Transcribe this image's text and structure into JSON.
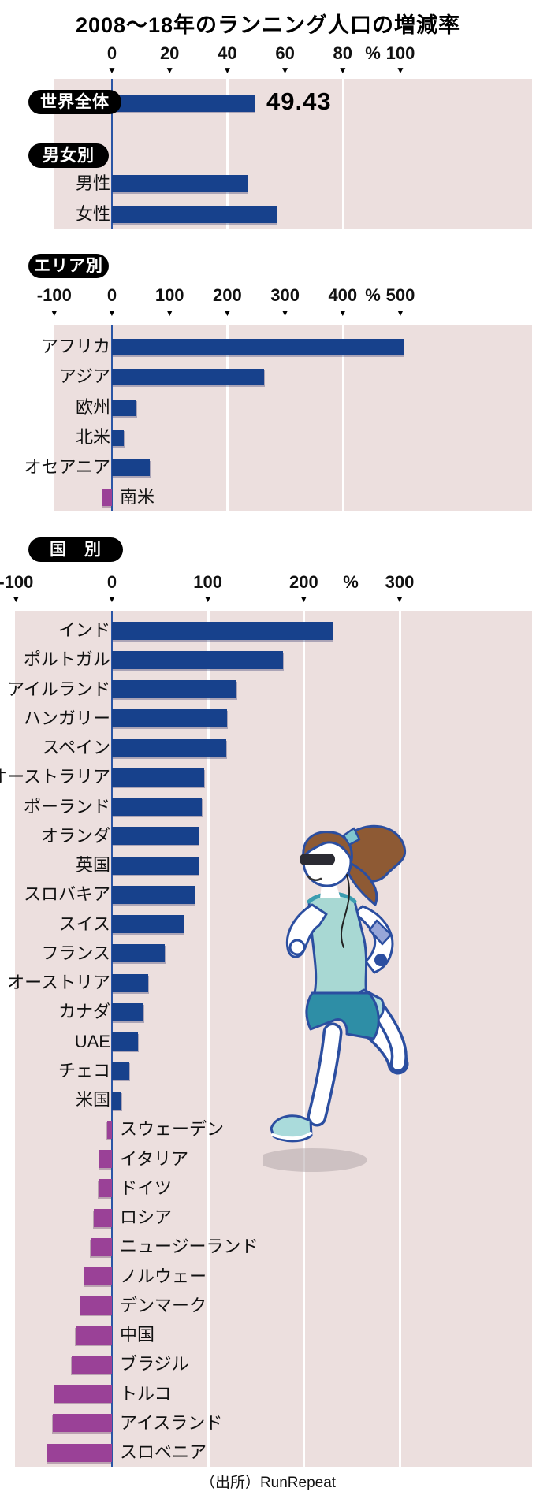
{
  "title": "2008〜18年のランニング人口の増減率",
  "source_label": "（出所）RunRepeat",
  "badges": {
    "world": "世界全体",
    "gender": "男女別",
    "area": "エリア別",
    "country": "国　別"
  },
  "colors": {
    "positive_bar": "#17418c",
    "negative_bar": "#9a4197",
    "plot_background": "#ecdfde",
    "zero_axis": "#2a55a5",
    "gridline": "#ffffff",
    "badge_background": "#000000",
    "badge_text": "#ffffff"
  },
  "chart_data": [
    {
      "type": "bar",
      "name": "世界全体・男女別",
      "unit": "%",
      "axis_ticks": [
        0,
        20,
        40,
        60,
        80,
        100
      ],
      "gridlines": [
        40,
        80
      ],
      "xlim": [
        0,
        146
      ],
      "categories": [
        "世界全体",
        "男性",
        "女性"
      ],
      "values": [
        49.43,
        47,
        57
      ],
      "value_label": "49.43"
    },
    {
      "type": "bar",
      "name": "エリア別",
      "unit": "%",
      "axis_ticks": [
        -100,
        0,
        100,
        200,
        300,
        400,
        500
      ],
      "gridlines": [
        200,
        400
      ],
      "xlim": [
        -100,
        730
      ],
      "categories": [
        "アフリカ",
        "アジア",
        "欧州",
        "北米",
        "オセアニア",
        "南米"
      ],
      "values": [
        505,
        263,
        42,
        20,
        65,
        -16
      ]
    },
    {
      "type": "bar",
      "name": "国別",
      "unit": "%",
      "axis_ticks": [
        -100,
        0,
        100,
        200,
        300
      ],
      "gridlines": [
        100,
        200,
        300
      ],
      "xlim": [
        -100,
        438
      ],
      "categories": [
        "インド",
        "ポルトガル",
        "アイルランド",
        "ハンガリー",
        "スペイン",
        "オーストラリア",
        "ポーランド",
        "オランダ",
        "英国",
        "スロバキア",
        "スイス",
        "フランス",
        "オーストリア",
        "カナダ",
        "UAE",
        "チェコ",
        "米国",
        "スウェーデン",
        "イタリア",
        "ドイツ",
        "ロシア",
        "ニュージーランド",
        "ノルウェー",
        "デンマーク",
        "中国",
        "ブラジル",
        "トルコ",
        "アイスランド",
        "スロベニア"
      ],
      "values": [
        230,
        178,
        130,
        120,
        119,
        96,
        94,
        90,
        90,
        86,
        75,
        55,
        38,
        33,
        27,
        18,
        10,
        -5,
        -13,
        -14,
        -19,
        -22,
        -29,
        -33,
        -38,
        -42,
        -60,
        -62,
        -67
      ]
    }
  ]
}
